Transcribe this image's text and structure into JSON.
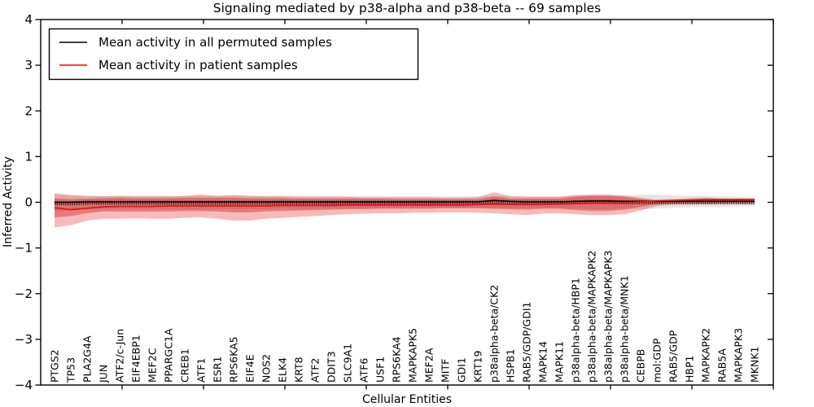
{
  "chart_data": {
    "type": "line",
    "title": "Signaling mediated by p38-alpha and p38-beta -- 69 samples",
    "xlabel": "Cellular Entities",
    "ylabel": "Inferred Activity",
    "ylim": [
      -4,
      4
    ],
    "yticks": [
      4,
      3,
      2,
      1,
      0,
      -1,
      -2,
      -3,
      -4
    ],
    "ytick_labels": [
      "4",
      "3",
      "2",
      "1",
      "0",
      "−1",
      "−2",
      "−3",
      "−4"
    ],
    "grid": false,
    "legend": {
      "position": "upper-left",
      "entries": [
        {
          "label": "Mean activity in all permuted samples",
          "color": "#000000"
        },
        {
          "label": "Mean activity in patient samples",
          "color": "#ff0000"
        }
      ]
    },
    "categories": [
      "PTGS2",
      "TP53",
      "PLA2G4A",
      "JUN",
      "ATF2/c-Jun",
      "EIF4EBP1",
      "MEF2C",
      "PPARGC1A",
      "CREB1",
      "ATF1",
      "ESR1",
      "RPS6KA5",
      "EIF4E",
      "NOS2",
      "ELK4",
      "KRT8",
      "ATF2",
      "DDIT3",
      "SLC9A1",
      "ATF6",
      "USF1",
      "RPS6KA4",
      "MAPKAPK5",
      "MEF2A",
      "MITF",
      "GDI1",
      "KRT19",
      "p38alpha-beta/CK2",
      "HSPB1",
      "RAB5/GDP/GDI1",
      "MAPK14",
      "MAPK11",
      "p38alpha-beta/HBP1",
      "p38alpha-beta/MAPKAPK2",
      "p38alpha-beta/MAPKAPK3",
      "p38alpha-beta/MNK1",
      "CEBPB",
      "mol:GDP",
      "RAB5/GDP",
      "HBP1",
      "MAPKAPK2",
      "RAB5A",
      "MAPKAPK3",
      "MKNK1"
    ],
    "series": [
      {
        "name": "Mean activity in all permuted samples",
        "color": "#000000",
        "values": [
          0.0,
          0.0,
          0.01,
          0.01,
          0.01,
          0.01,
          0.01,
          0.01,
          0.01,
          0.01,
          0.01,
          0.01,
          0.01,
          0.01,
          0.01,
          0.01,
          0.01,
          0.01,
          0.01,
          0.01,
          0.01,
          0.01,
          0.01,
          0.01,
          0.01,
          0.01,
          0.01,
          0.04,
          0.02,
          0.01,
          0.01,
          0.01,
          0.02,
          0.03,
          0.03,
          0.02,
          0.02,
          0.02,
          0.02,
          0.02,
          0.02,
          0.02,
          0.02,
          0.02
        ]
      },
      {
        "name": "Mean activity in patient samples",
        "color": "#e51212",
        "values": [
          -0.12,
          -0.16,
          -0.13,
          -0.1,
          -0.09,
          -0.09,
          -0.09,
          -0.08,
          -0.08,
          -0.08,
          -0.08,
          -0.08,
          -0.08,
          -0.08,
          -0.07,
          -0.07,
          -0.07,
          -0.07,
          -0.06,
          -0.06,
          -0.06,
          -0.06,
          -0.06,
          -0.06,
          -0.06,
          -0.06,
          -0.05,
          -0.04,
          -0.05,
          -0.05,
          -0.05,
          -0.04,
          -0.03,
          -0.02,
          -0.02,
          -0.01,
          0.01,
          0.03,
          0.04,
          0.05,
          0.06,
          0.06,
          0.06,
          0.06
        ]
      }
    ],
    "bands": [
      {
        "name": "permuted-range",
        "color": "rgba(130,130,130,0.22)",
        "top": [
          0.16,
          0.15,
          0.14,
          0.14,
          0.14,
          0.14,
          0.14,
          0.14,
          0.14,
          0.14,
          0.14,
          0.14,
          0.14,
          0.14,
          0.14,
          0.14,
          0.14,
          0.14,
          0.13,
          0.13,
          0.13,
          0.13,
          0.13,
          0.13,
          0.13,
          0.13,
          0.13,
          0.14,
          0.14,
          0.13,
          0.13,
          0.13,
          0.14,
          0.15,
          0.15,
          0.14,
          0.16,
          0.17,
          0.15,
          0.14,
          0.14,
          0.13,
          0.12,
          0.11
        ],
        "bottom": [
          -0.2,
          -0.18,
          -0.16,
          -0.15,
          -0.15,
          -0.15,
          -0.15,
          -0.15,
          -0.15,
          -0.15,
          -0.15,
          -0.15,
          -0.15,
          -0.15,
          -0.14,
          -0.14,
          -0.14,
          -0.14,
          -0.14,
          -0.14,
          -0.13,
          -0.13,
          -0.13,
          -0.13,
          -0.13,
          -0.13,
          -0.13,
          -0.14,
          -0.14,
          -0.13,
          -0.13,
          -0.13,
          -0.14,
          -0.15,
          -0.15,
          -0.14,
          -0.15,
          -0.14,
          -0.12,
          -0.11,
          -0.1,
          -0.1,
          -0.09,
          -0.08
        ]
      },
      {
        "name": "patient-range-outer",
        "color": "rgba(228,26,28,0.30)",
        "top": [
          0.2,
          0.16,
          0.14,
          0.13,
          0.14,
          0.13,
          0.13,
          0.13,
          0.14,
          0.17,
          0.14,
          0.16,
          0.14,
          0.13,
          0.13,
          0.12,
          0.12,
          0.12,
          0.12,
          0.11,
          0.11,
          0.11,
          0.11,
          0.11,
          0.1,
          0.1,
          0.11,
          0.22,
          0.13,
          0.12,
          0.12,
          0.12,
          0.16,
          0.17,
          0.17,
          0.15,
          0.1,
          0.06,
          0.07,
          0.09,
          0.1,
          0.08,
          0.08,
          0.08
        ],
        "bottom": [
          -0.55,
          -0.5,
          -0.4,
          -0.36,
          -0.36,
          -0.35,
          -0.36,
          -0.36,
          -0.34,
          -0.33,
          -0.36,
          -0.4,
          -0.4,
          -0.36,
          -0.34,
          -0.32,
          -0.3,
          -0.28,
          -0.26,
          -0.25,
          -0.24,
          -0.24,
          -0.23,
          -0.23,
          -0.22,
          -0.22,
          -0.23,
          -0.24,
          -0.26,
          -0.28,
          -0.25,
          -0.24,
          -0.26,
          -0.28,
          -0.28,
          -0.26,
          -0.18,
          -0.08,
          -0.05,
          -0.05,
          -0.05,
          -0.04,
          -0.04,
          -0.04
        ]
      },
      {
        "name": "patient-range-inner",
        "color": "rgba(205,20,20,0.38)",
        "top": [
          0.08,
          0.07,
          0.08,
          0.09,
          0.1,
          0.09,
          0.09,
          0.09,
          0.1,
          0.1,
          0.1,
          0.1,
          0.09,
          0.09,
          0.09,
          0.08,
          0.08,
          0.08,
          0.08,
          0.08,
          0.08,
          0.07,
          0.07,
          0.07,
          0.07,
          0.07,
          0.07,
          0.13,
          0.08,
          0.08,
          0.08,
          0.08,
          0.12,
          0.14,
          0.14,
          0.12,
          0.07,
          0.04,
          0.05,
          0.06,
          0.07,
          0.06,
          0.06,
          0.06
        ],
        "bottom": [
          -0.33,
          -0.3,
          -0.24,
          -0.2,
          -0.2,
          -0.2,
          -0.2,
          -0.2,
          -0.19,
          -0.19,
          -0.2,
          -0.22,
          -0.22,
          -0.2,
          -0.19,
          -0.18,
          -0.17,
          -0.16,
          -0.15,
          -0.15,
          -0.14,
          -0.14,
          -0.14,
          -0.14,
          -0.13,
          -0.13,
          -0.13,
          -0.14,
          -0.15,
          -0.16,
          -0.14,
          -0.14,
          -0.17,
          -0.19,
          -0.19,
          -0.16,
          -0.1,
          -0.04,
          -0.02,
          -0.02,
          -0.02,
          -0.01,
          -0.01,
          -0.01
        ]
      }
    ]
  }
}
